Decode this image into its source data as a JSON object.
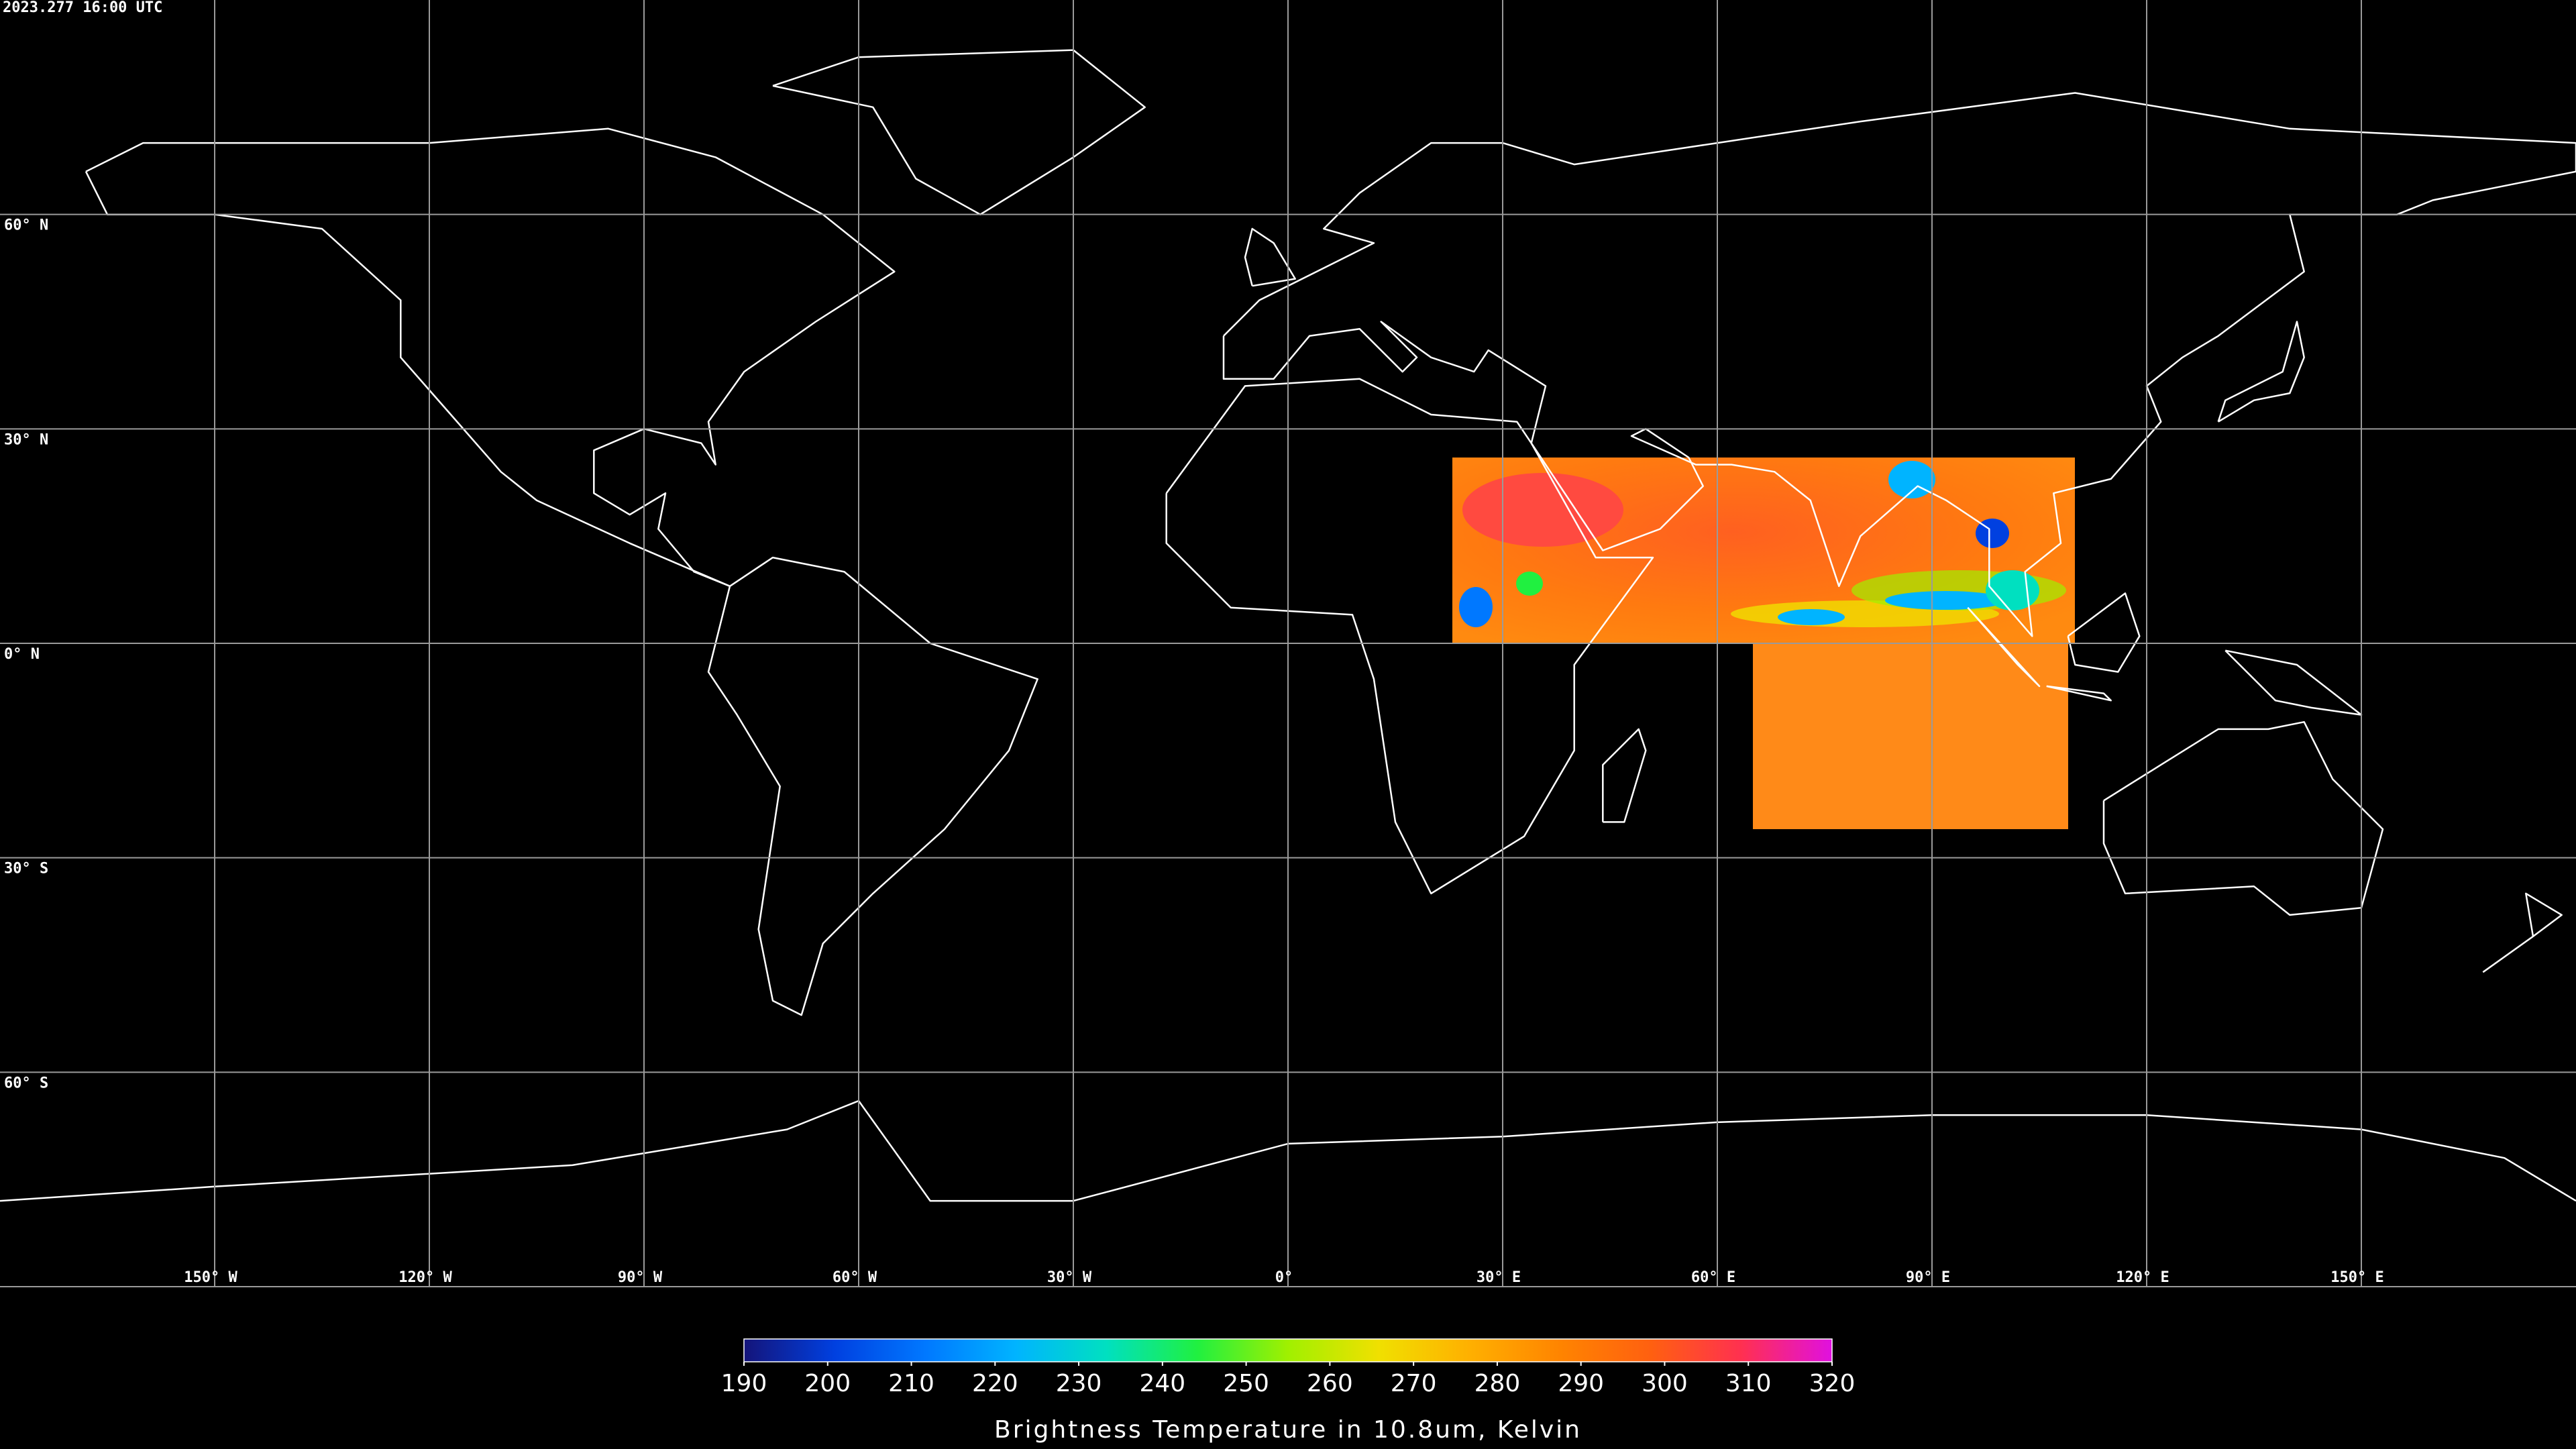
{
  "header": {
    "timestamp": "2023.277 16:00 UTC"
  },
  "map": {
    "lat_lines": [
      {
        "value": 60,
        "label": "60° N"
      },
      {
        "value": 30,
        "label": "30° N"
      },
      {
        "value": 0,
        "label": "0° N"
      },
      {
        "value": -30,
        "label": "30° S"
      },
      {
        "value": -60,
        "label": "60° S"
      }
    ],
    "lon_lines": [
      {
        "value": -150,
        "label": "150° W"
      },
      {
        "value": -120,
        "label": "120° W"
      },
      {
        "value": -90,
        "label": "90° W"
      },
      {
        "value": -60,
        "label": "60° W"
      },
      {
        "value": -30,
        "label": "30° W"
      },
      {
        "value": 0,
        "label": "0°"
      },
      {
        "value": 30,
        "label": "30° E"
      },
      {
        "value": 60,
        "label": "60° E"
      },
      {
        "value": 90,
        "label": "90° E"
      },
      {
        "value": 120,
        "label": "120° E"
      },
      {
        "value": 150,
        "label": "150° E"
      }
    ]
  },
  "colorbar": {
    "clim": [
      190,
      320
    ],
    "ticks": [
      190,
      200,
      210,
      220,
      230,
      240,
      250,
      260,
      270,
      280,
      290,
      300,
      310,
      320
    ],
    "colors": [
      "#14147a",
      "#0040e0",
      "#0078ff",
      "#00b4ff",
      "#00e0c0",
      "#20f040",
      "#a0f000",
      "#f0e000",
      "#ffb000",
      "#ff8400",
      "#ff6010",
      "#ff3050",
      "#e010e0"
    ],
    "label": "Brightness Temperature in 10.8um, Kelvin"
  }
}
